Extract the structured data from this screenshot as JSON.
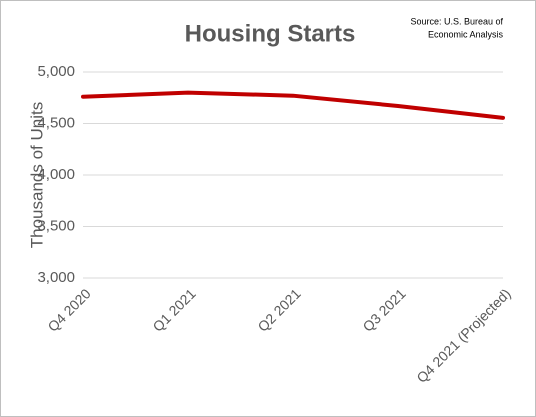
{
  "chart_data": {
    "type": "line",
    "title": "Housing Starts",
    "source": [
      "Source: U.S. Bureau of",
      "Economic Analysis"
    ],
    "y_label": "Thousands of Units",
    "categories": [
      "Q4 2020",
      "Q1 2021",
      "Q2 2021",
      "Q3 2021",
      "Q4 2021 (Projected)"
    ],
    "series": [
      {
        "name": "Housing Starts",
        "color": "#c00000",
        "values": [
          4760,
          4800,
          4770,
          4670,
          4555
        ]
      }
    ],
    "ylim": [
      3000,
      5000
    ],
    "yticks": [
      {
        "value": 3000,
        "label": "3,000"
      },
      {
        "value": 3500,
        "label": "3,500"
      },
      {
        "value": 4000,
        "label": "4,000"
      },
      {
        "value": 4500,
        "label": "4,500"
      },
      {
        "value": 5000,
        "label": "5,000"
      }
    ],
    "grid": true
  }
}
